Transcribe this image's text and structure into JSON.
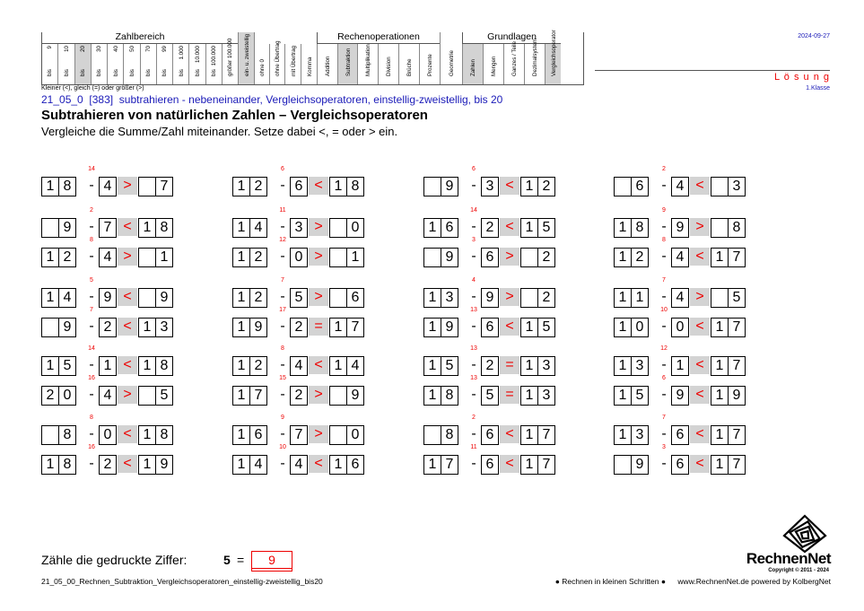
{
  "header": {
    "groups": [
      {
        "title": "Zahlbereich",
        "left": 0,
        "width": 219
      },
      {
        "title": "",
        "left": 219,
        "width": 18
      },
      {
        "title": "",
        "left": 237,
        "width": 70
      },
      {
        "title": "Rechenoperationen",
        "left": 307,
        "width": 137
      },
      {
        "title": "",
        "left": 444,
        "width": 25
      },
      {
        "title": "Grundlagen",
        "left": 469,
        "width": 110
      }
    ],
    "zahlbereich_cols": [
      {
        "top": "9",
        "bottom": "bis"
      },
      {
        "top": "10",
        "bottom": "bis"
      },
      {
        "top": "20",
        "bottom": "bis",
        "shade": true
      },
      {
        "top": "30",
        "bottom": "bis"
      },
      {
        "top": "40",
        "bottom": "bis"
      },
      {
        "top": "50",
        "bottom": "bis"
      },
      {
        "top": "70",
        "bottom": "bis"
      },
      {
        "top": "99",
        "bottom": "bis"
      },
      {
        "top": "1.000",
        "bottom": "bis"
      },
      {
        "top": "10.000",
        "bottom": "bis"
      },
      {
        "top": "100.000",
        "bottom": "bis"
      },
      {
        "top": "",
        "bottom": "größer 100.000"
      }
    ],
    "other_cols": [
      "ein- u. zweistellig",
      "ohne 0",
      "ohne Übertrag",
      "mit Übertrag",
      "Komma",
      "Addition",
      "Subtraktion",
      "Multiplikation",
      "Division",
      "Brüche",
      "Prozente",
      "Geometrie",
      "Zahlen",
      "Mengen",
      "Ganzes / Teile",
      "Dezimalsystem",
      "Vergleichsoperator"
    ],
    "shaded_other": [
      "ein- u. zweistellig",
      "Subtraktion",
      "Zahlen",
      "Vergleichsoperator"
    ],
    "legend": "Kleiner (<), gleich (=) oder größer (>)"
  },
  "date": "2024-09-27",
  "loesung": "L ö s u n g",
  "klasse": "1.Klasse",
  "code_line": {
    "code": "21_05_0",
    "num": "[383]",
    "desc": "subtrahieren - nebeneinander, Vergleichsoperatoren, einstellig-zweistellig, bis 20"
  },
  "title": "Subtrahieren von natürlichen Zahlen – Vergleichsoperatoren",
  "instruction": "Vergleiche die Summe/Zahl miteinander. Setze dabei <, = oder > ein.",
  "problems": [
    {
      "a": "18",
      "b": "4",
      "op": ">",
      "c": "7",
      "hint": "14"
    },
    {
      "a": "12",
      "b": "6",
      "op": "<",
      "c": "18",
      "hint": "6"
    },
    {
      "a": "9",
      "b": "3",
      "op": "<",
      "c": "12",
      "hint": "6"
    },
    {
      "a": "6",
      "b": "4",
      "op": "<",
      "c": "3",
      "hint": "2"
    },
    {
      "a": "9",
      "b": "7",
      "op": "<",
      "c": "18",
      "hint": "2"
    },
    {
      "a": "14",
      "b": "3",
      "op": ">",
      "c": "0",
      "hint": "11"
    },
    {
      "a": "16",
      "b": "2",
      "op": "<",
      "c": "15",
      "hint": "14"
    },
    {
      "a": "18",
      "b": "9",
      "op": ">",
      "c": "8",
      "hint": "9"
    },
    {
      "a": "12",
      "b": "4",
      "op": ">",
      "c": "1",
      "hint": "8"
    },
    {
      "a": "12",
      "b": "0",
      "op": ">",
      "c": "1",
      "hint": "12"
    },
    {
      "a": "9",
      "b": "6",
      "op": ">",
      "c": "2",
      "hint": "3"
    },
    {
      "a": "12",
      "b": "4",
      "op": "<",
      "c": "17",
      "hint": "8"
    },
    {
      "a": "14",
      "b": "9",
      "op": "<",
      "c": "9",
      "hint": "5"
    },
    {
      "a": "12",
      "b": "5",
      "op": ">",
      "c": "6",
      "hint": "7"
    },
    {
      "a": "13",
      "b": "9",
      "op": ">",
      "c": "2",
      "hint": "4"
    },
    {
      "a": "11",
      "b": "4",
      "op": ">",
      "c": "5",
      "hint": "7"
    },
    {
      "a": "9",
      "b": "2",
      "op": "<",
      "c": "13",
      "hint": "7"
    },
    {
      "a": "19",
      "b": "2",
      "op": "=",
      "c": "17",
      "hint": "17"
    },
    {
      "a": "19",
      "b": "6",
      "op": "<",
      "c": "15",
      "hint": "13"
    },
    {
      "a": "10",
      "b": "0",
      "op": "<",
      "c": "17",
      "hint": "10"
    },
    {
      "a": "15",
      "b": "1",
      "op": "<",
      "c": "18",
      "hint": "14"
    },
    {
      "a": "12",
      "b": "4",
      "op": "<",
      "c": "14",
      "hint": "8"
    },
    {
      "a": "15",
      "b": "2",
      "op": "=",
      "c": "13",
      "hint": "13"
    },
    {
      "a": "13",
      "b": "1",
      "op": "<",
      "c": "17",
      "hint": "12"
    },
    {
      "a": "20",
      "b": "4",
      "op": ">",
      "c": "5",
      "hint": "16"
    },
    {
      "a": "17",
      "b": "2",
      "op": ">",
      "c": "9",
      "hint": "15"
    },
    {
      "a": "18",
      "b": "5",
      "op": "=",
      "c": "13",
      "hint": "13"
    },
    {
      "a": "15",
      "b": "9",
      "op": "<",
      "c": "19",
      "hint": "6"
    },
    {
      "a": "8",
      "b": "0",
      "op": "<",
      "c": "18",
      "hint": "8"
    },
    {
      "a": "16",
      "b": "7",
      "op": ">",
      "c": "0",
      "hint": "9"
    },
    {
      "a": "8",
      "b": "6",
      "op": "<",
      "c": "17",
      "hint": "2"
    },
    {
      "a": "13",
      "b": "6",
      "op": "<",
      "c": "17",
      "hint": "7"
    },
    {
      "a": "18",
      "b": "2",
      "op": "<",
      "c": "19",
      "hint": "16"
    },
    {
      "a": "14",
      "b": "4",
      "op": "<",
      "c": "16",
      "hint": "10"
    },
    {
      "a": "17",
      "b": "6",
      "op": "<",
      "c": "17",
      "hint": "11"
    },
    {
      "a": "9",
      "b": "6",
      "op": "<",
      "c": "17",
      "hint": "3"
    }
  ],
  "count": {
    "label": "Zähle die gedruckte Ziffer:",
    "digit": "5",
    "eq": "=",
    "answer": "9"
  },
  "footer": {
    "filename": "21_05_00_Rechnen_Subtraktion_Vergleichsoperatoren_einstellig-zweistellig_bis20",
    "series": "● Rechnen in kleinen Schritten ●",
    "site": "www.RechnenNet.de powered by KolbergNet",
    "brand": "RechnenNet",
    "copyright": "Copyright © 2011 - 2024"
  },
  "colors": {
    "red": "#e00000",
    "blue": "#1a1ab8",
    "shade": "#d3d3d3"
  }
}
